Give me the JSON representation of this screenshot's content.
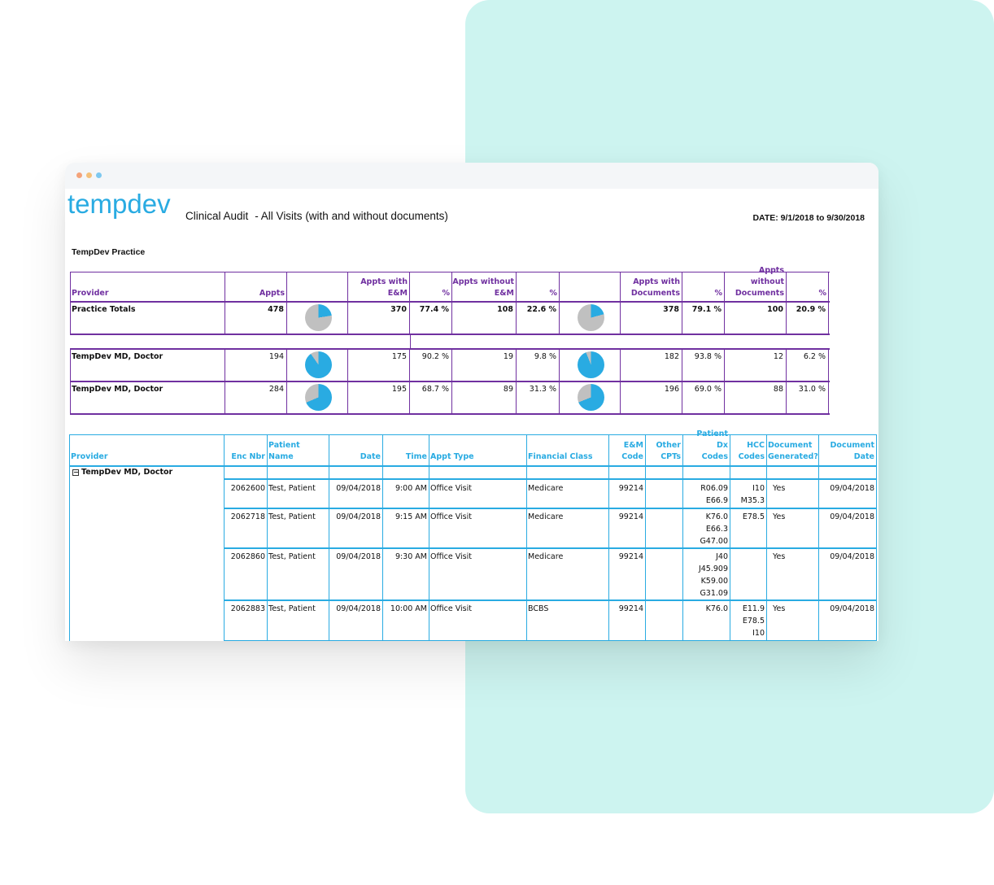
{
  "window": {
    "dots": [
      "#f4a37a",
      "#f4c07a",
      "#7dc8ef"
    ]
  },
  "report": {
    "logo": "tempdev",
    "title": "Clinical Audit",
    "subtitle": "- All Visits (with and without documents)",
    "date_range": "DATE: 9/1/2018 to 9/30/2018",
    "practice": "TempDev Practice"
  },
  "summary": {
    "headers": [
      "Provider",
      "Appts",
      "",
      "Appts with\nE&M",
      "%",
      "Appts without\nE&M",
      "%",
      "",
      "Appts with\nDocuments",
      "%",
      "Appts without\nDocuments",
      "%"
    ],
    "totals": {
      "provider": "Practice Totals",
      "appts": "478",
      "with_em": "370",
      "with_em_pct": "77.4 %",
      "without_em": "108",
      "without_em_pct": "22.6 %",
      "with_docs": "378",
      "with_docs_pct": "79.1 %",
      "without_docs": "100",
      "without_docs_pct": "20.9 %",
      "pie1_fraction": 0.226,
      "pie2_fraction": 0.209
    },
    "rows": [
      {
        "provider": "TempDev MD, Doctor",
        "appts": "194",
        "with_em": "175",
        "with_em_pct": "90.2 %",
        "without_em": "19",
        "without_em_pct": "9.8 %",
        "with_docs": "182",
        "with_docs_pct": "93.8 %",
        "without_docs": "12",
        "without_docs_pct": "6.2 %",
        "pie1_fraction": 0.902,
        "pie2_fraction": 0.938
      },
      {
        "provider": "TempDev MD, Doctor",
        "appts": "284",
        "with_em": "195",
        "with_em_pct": "68.7 %",
        "without_em": "89",
        "without_em_pct": "31.3 %",
        "with_docs": "196",
        "with_docs_pct": "69.0 %",
        "without_docs": "88",
        "without_docs_pct": "31.0 %",
        "pie1_fraction": 0.687,
        "pie2_fraction": 0.69
      }
    ],
    "colors": {
      "border": "#7030a0",
      "pie_blue": "#29abe2",
      "pie_grey": "#c0c0c0"
    }
  },
  "detail": {
    "headers": [
      "Provider",
      "Enc Nbr",
      "Patient Name",
      "Date",
      "Time",
      "Appt Type",
      "Financial Class",
      "E&M\nCode",
      "Other\nCPTs",
      "Patient Dx\nCodes",
      "HCC\nCodes",
      "Document\nGenerated?",
      "Document\nDate"
    ],
    "group": "TempDev MD, Doctor",
    "rows": [
      {
        "enc": "2062600",
        "patient": "Test, Patient",
        "date": "09/04/2018",
        "time": "9:00 AM",
        "type": "Office Visit",
        "fclass": "Medicare",
        "em": "99214",
        "cpts": "",
        "dx": "R06.09\nE66.9",
        "hcc": "I10\nM35.3",
        "generated": "Yes",
        "doc_date": "09/04/2018"
      },
      {
        "enc": "2062718",
        "patient": "Test, Patient",
        "date": "09/04/2018",
        "time": "9:15 AM",
        "type": "Office Visit",
        "fclass": "Medicare",
        "em": "99214",
        "cpts": "",
        "dx": "K76.0\nE66.3\nG47.00",
        "hcc": "E78.5",
        "generated": "Yes",
        "doc_date": "09/04/2018"
      },
      {
        "enc": "2062860",
        "patient": "Test, Patient",
        "date": "09/04/2018",
        "time": "9:30 AM",
        "type": "Office Visit",
        "fclass": "Medicare",
        "em": "99214",
        "cpts": "",
        "dx": "J40\nJ45.909\nK59.00\nG31.09",
        "hcc": "",
        "generated": "Yes",
        "doc_date": "09/04/2018"
      },
      {
        "enc": "2062883",
        "patient": "Test, Patient",
        "date": "09/04/2018",
        "time": "10:00 AM",
        "type": "Office Visit",
        "fclass": "BCBS",
        "em": "99214",
        "cpts": "",
        "dx": "K76.0",
        "hcc": "E11.9\nE78.5\nI10",
        "generated": "Yes",
        "doc_date": "09/04/2018"
      }
    ],
    "colors": {
      "border": "#29abe2",
      "header_text": "#29abe2"
    }
  }
}
